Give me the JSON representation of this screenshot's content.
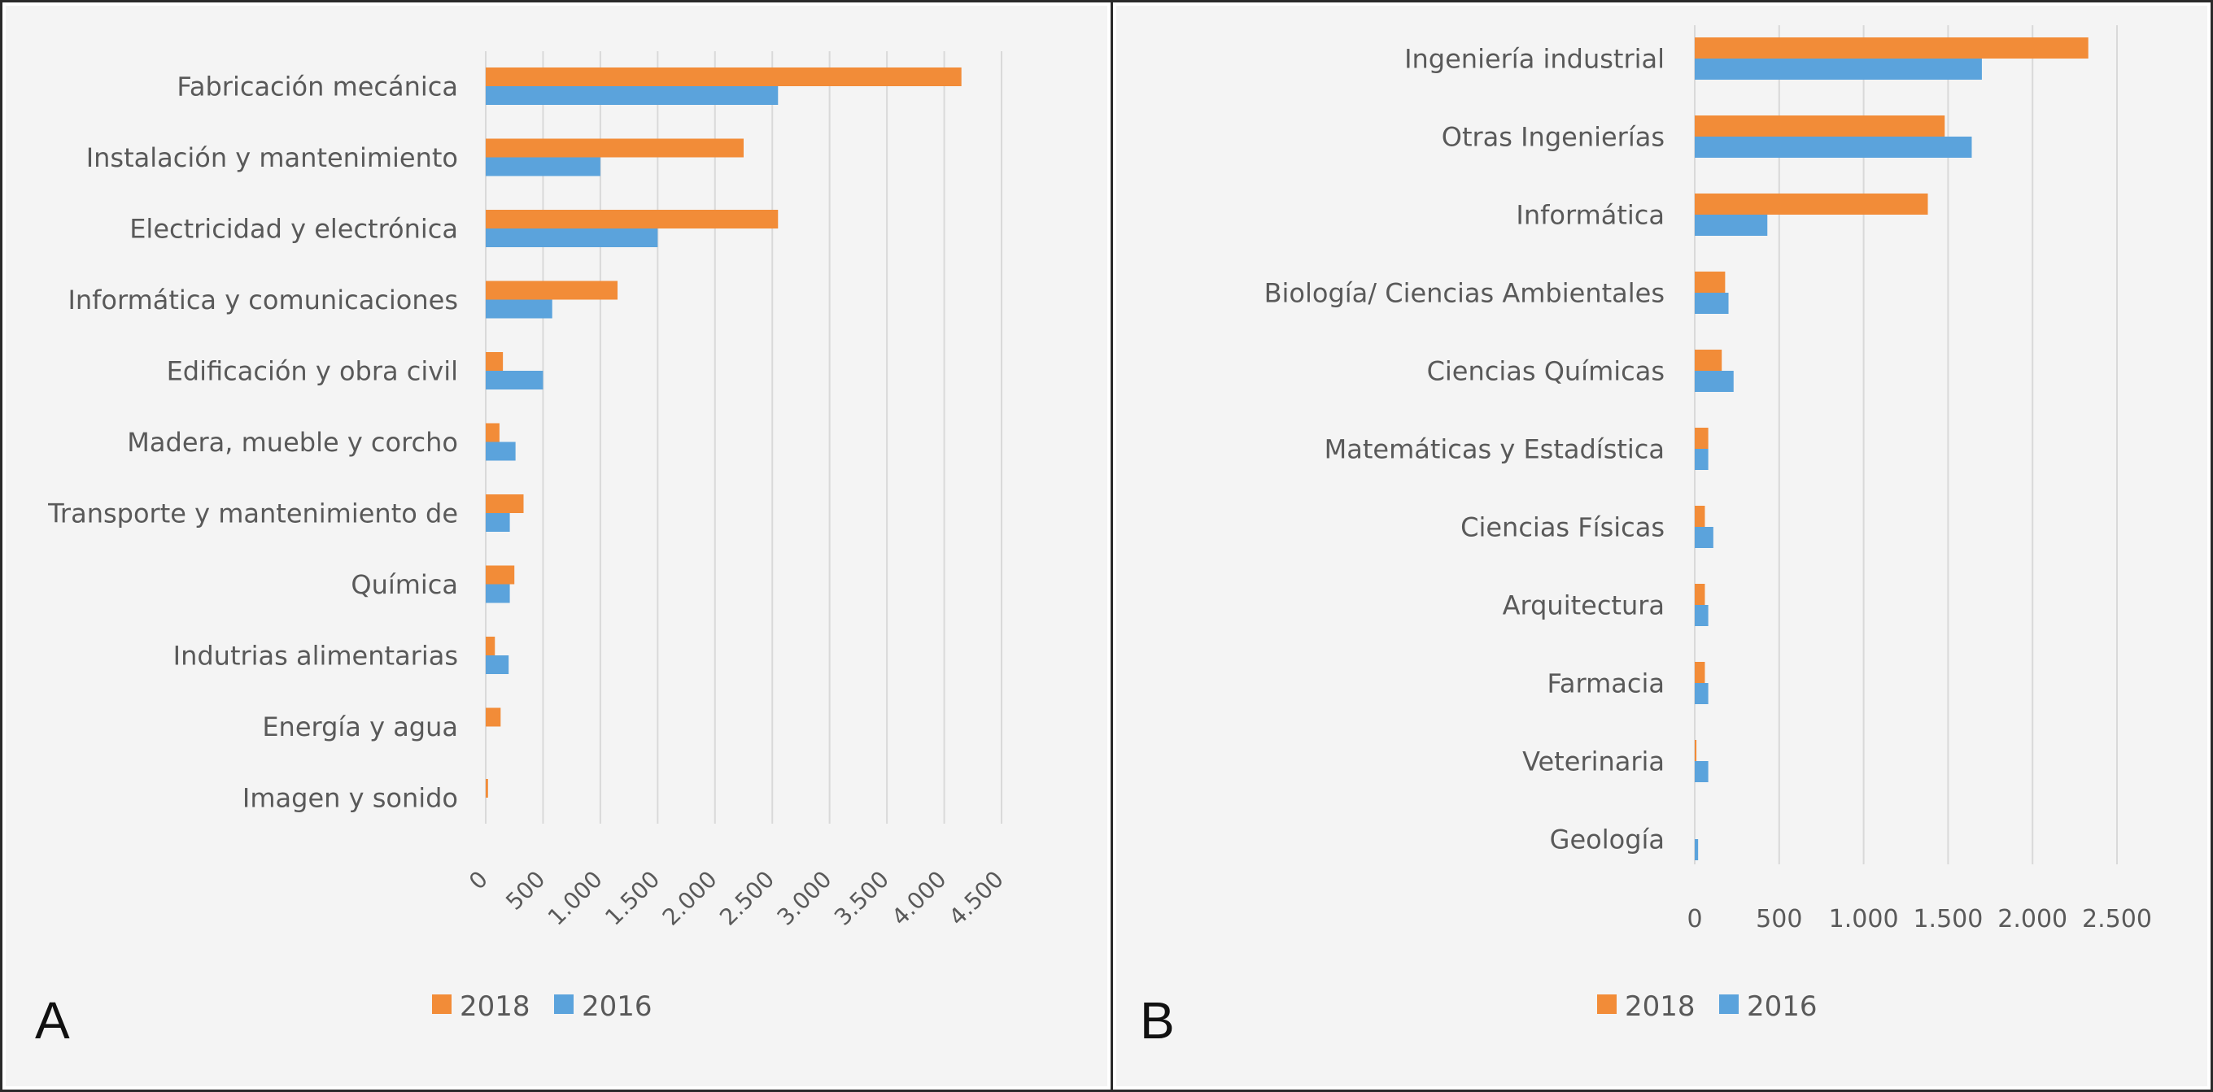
{
  "chart_data": [
    {
      "type": "bar",
      "orientation": "horizontal",
      "panel_label": "A",
      "categories": [
        "Fabricación mecánica",
        "Instalación y mantenimiento",
        "Electricidad y electrónica",
        "Informática y comunicaciones",
        "Edificación y obra civil",
        "Madera, mueble y corcho",
        "Transporte y mantenimiento de",
        "Química",
        "Indutrias alimentarias",
        "Energía y agua",
        "Imagen y sonido"
      ],
      "series": [
        {
          "name": "2018",
          "color": "#f28c38",
          "values": [
            4150,
            2250,
            2550,
            1150,
            150,
            120,
            330,
            250,
            80,
            130,
            20
          ]
        },
        {
          "name": "2016",
          "color": "#5ba3dc",
          "values": [
            2550,
            1000,
            1500,
            580,
            500,
            260,
            210,
            210,
            200,
            0,
            0
          ]
        }
      ],
      "xlim": [
        0,
        4500
      ],
      "ticks": [
        0,
        500,
        1000,
        1500,
        2000,
        2500,
        3000,
        3500,
        4000,
        4500
      ],
      "tick_labels": [
        "0",
        "500",
        "1.000",
        "1.500",
        "2.000",
        "2.500",
        "3.000",
        "3.500",
        "4.000",
        "4.500"
      ],
      "tick_rotation": "rotated",
      "grid": "vertical",
      "legend": "bottom"
    },
    {
      "type": "bar",
      "orientation": "horizontal",
      "panel_label": "B",
      "categories": [
        "Ingeniería industrial",
        "Otras Ingenierías",
        "Informática",
        "Biología/ Ciencias Ambientales",
        "Ciencias Químicas",
        "Matemáticas y Estadística",
        "Ciencias Físicas",
        "Arquitectura",
        "Farmacia",
        "Veterinaria",
        "Geología"
      ],
      "series": [
        {
          "name": "2018",
          "color": "#f28c38",
          "values": [
            2330,
            1480,
            1380,
            180,
            160,
            80,
            60,
            60,
            60,
            10,
            0
          ]
        },
        {
          "name": "2016",
          "color": "#5ba3dc",
          "values": [
            1700,
            1640,
            430,
            200,
            230,
            80,
            110,
            80,
            80,
            80,
            20
          ]
        }
      ],
      "xlim": [
        0,
        2500
      ],
      "ticks": [
        0,
        500,
        1000,
        1500,
        2000,
        2500
      ],
      "tick_labels": [
        "0",
        "500",
        "1.000",
        "1.500",
        "2.000",
        "2.500"
      ],
      "tick_rotation": "horizontal",
      "grid": "vertical",
      "legend": "bottom"
    }
  ]
}
